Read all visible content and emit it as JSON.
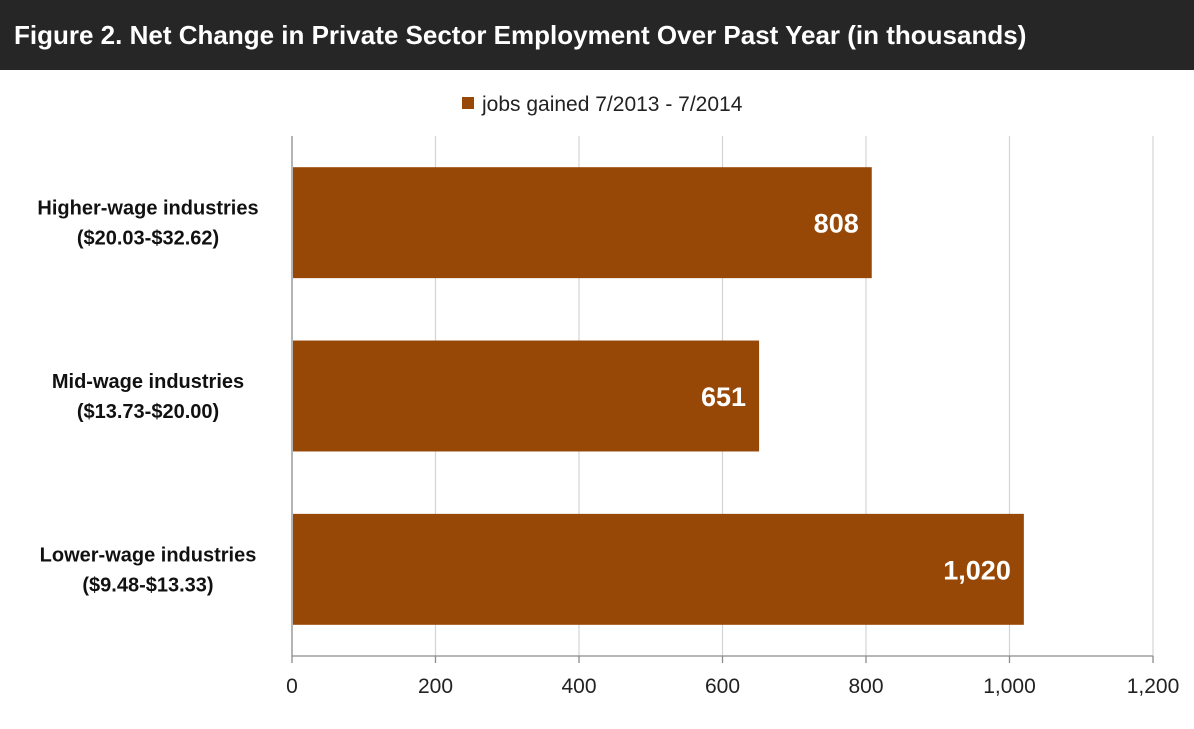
{
  "figure": {
    "title": "Figure 2. Net Change in Private Sector Employment Over Past Year (in thousands)"
  },
  "colors": {
    "title_background": "#262626",
    "title_text": "#ffffff",
    "bar_fill": "#974706",
    "gridline": "#d4d4d4",
    "axis": "#8c8c8c"
  },
  "chart_data": {
    "type": "bar",
    "orientation": "horizontal",
    "title": "Figure 2. Net Change in Private Sector Employment Over Past Year (in thousands)",
    "categories": [
      [
        "Higher-wage industries",
        "($20.03-$32.62)"
      ],
      [
        "Mid-wage industries",
        "($13.73-$20.00)"
      ],
      [
        "Lower-wage industries",
        "($9.48-$13.33)"
      ]
    ],
    "series": [
      {
        "name": "jobs gained 7/2013 - 7/2014",
        "values": [
          808,
          651,
          1020
        ],
        "value_labels": [
          "808",
          "651",
          "1,020"
        ]
      }
    ],
    "xlim": [
      0,
      1200
    ],
    "x_ticks": [
      0,
      200,
      400,
      600,
      800,
      1000,
      1200
    ],
    "x_tick_labels": [
      "0",
      "200",
      "400",
      "600",
      "800",
      "1,000",
      "1,200"
    ],
    "xlabel": "",
    "ylabel": "",
    "grid": "vertical",
    "legend": "top-center"
  }
}
